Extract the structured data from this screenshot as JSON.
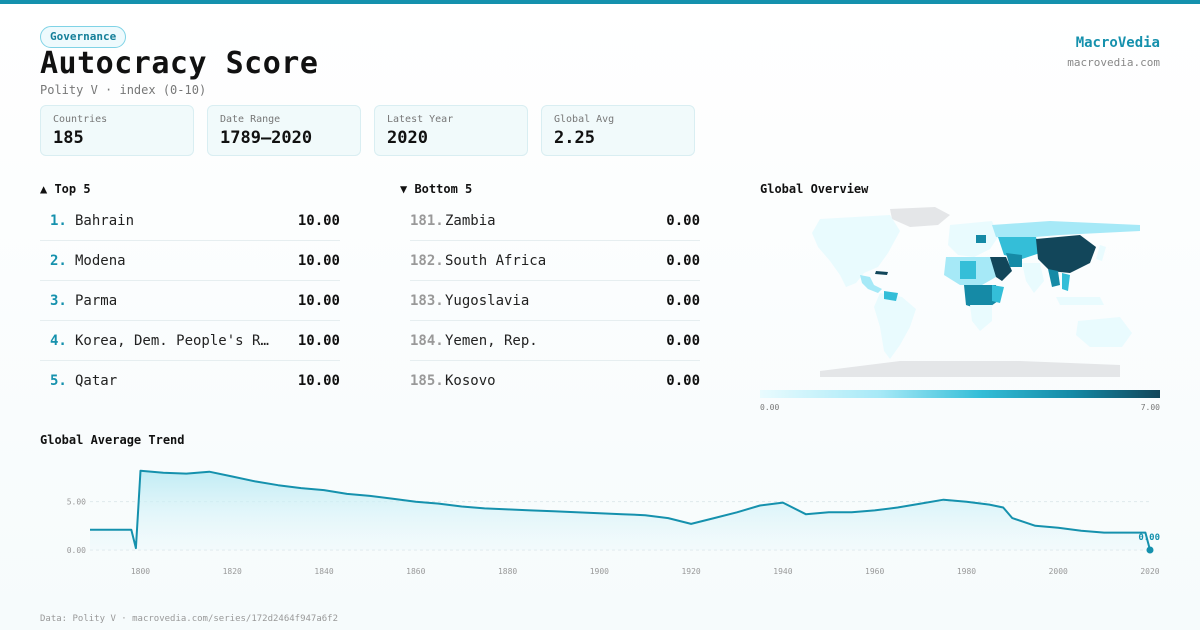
{
  "header": {
    "badge": "Governance",
    "title": "Autocracy Score",
    "subtitle": "Polity V · index (0-10)",
    "brand": "MacroVedia",
    "brand_url": "macrovedia.com"
  },
  "stats": [
    {
      "label": "Countries",
      "value": "185"
    },
    {
      "label": "Date Range",
      "value": "1789–2020"
    },
    {
      "label": "Latest Year",
      "value": "2020"
    },
    {
      "label": "Global Avg",
      "value": "2.25"
    }
  ],
  "top5": {
    "heading": "▲ Top 5",
    "rows": [
      {
        "rank": "1.",
        "name": "Bahrain",
        "score": "10.00"
      },
      {
        "rank": "2.",
        "name": "Modena",
        "score": "10.00"
      },
      {
        "rank": "3.",
        "name": "Parma",
        "score": "10.00"
      },
      {
        "rank": "4.",
        "name": "Korea, Dem. People's Rep.",
        "score": "10.00"
      },
      {
        "rank": "5.",
        "name": "Qatar",
        "score": "10.00"
      }
    ]
  },
  "bottom5": {
    "heading": "▼ Bottom 5",
    "rows": [
      {
        "rank": "181.",
        "name": "Zambia",
        "score": "0.00"
      },
      {
        "rank": "182.",
        "name": "South Africa",
        "score": "0.00"
      },
      {
        "rank": "183.",
        "name": "Yugoslavia",
        "score": "0.00"
      },
      {
        "rank": "184.",
        "name": "Yemen, Rep.",
        "score": "0.00"
      },
      {
        "rank": "185.",
        "name": "Kosovo",
        "score": "0.00"
      }
    ]
  },
  "map": {
    "heading": "Global Overview",
    "legend_min": "0.00",
    "legend_max": "7.00",
    "colors": {
      "low": "#e9fbfe",
      "mid": "#34bed8",
      "high": "#12465a",
      "nodata": "#e4e6e8"
    }
  },
  "trend": {
    "heading": "Global Average Trend",
    "end_label": "0.00"
  },
  "footer": "Data: Polity V · macrovedia.com/series/172d2464f947a6f2",
  "chart_data": {
    "type": "line",
    "title": "Global Average Trend",
    "x": [
      1789,
      1798,
      1799,
      1800,
      1805,
      1810,
      1815,
      1820,
      1825,
      1830,
      1835,
      1840,
      1845,
      1850,
      1855,
      1860,
      1865,
      1870,
      1875,
      1880,
      1885,
      1890,
      1895,
      1900,
      1905,
      1910,
      1915,
      1920,
      1925,
      1930,
      1935,
      1940,
      1945,
      1950,
      1955,
      1960,
      1965,
      1970,
      1975,
      1980,
      1985,
      1988,
      1990,
      1995,
      2000,
      2005,
      2010,
      2015,
      2019,
      2020
    ],
    "y": [
      2.1,
      2.1,
      0.2,
      8.2,
      8.0,
      7.9,
      8.1,
      7.6,
      7.1,
      6.7,
      6.4,
      6.2,
      5.8,
      5.6,
      5.3,
      5.0,
      4.8,
      4.5,
      4.3,
      4.2,
      4.1,
      4.0,
      3.9,
      3.8,
      3.7,
      3.6,
      3.3,
      2.7,
      3.3,
      3.9,
      4.6,
      4.9,
      3.7,
      3.9,
      3.9,
      4.1,
      4.4,
      4.8,
      5.2,
      5.0,
      4.7,
      4.4,
      3.3,
      2.5,
      2.3,
      2.0,
      1.8,
      1.8,
      1.8,
      0.0
    ],
    "xticks": [
      1800,
      1820,
      1840,
      1860,
      1880,
      1900,
      1920,
      1940,
      1960,
      1980,
      2000,
      2020
    ],
    "yticks": [
      0,
      5
    ],
    "ytick_labels": [
      "0.00",
      "5.00"
    ],
    "xlim": [
      1789,
      2020
    ],
    "ylim": [
      0,
      9
    ],
    "grid": true,
    "color": "#1591ad"
  }
}
